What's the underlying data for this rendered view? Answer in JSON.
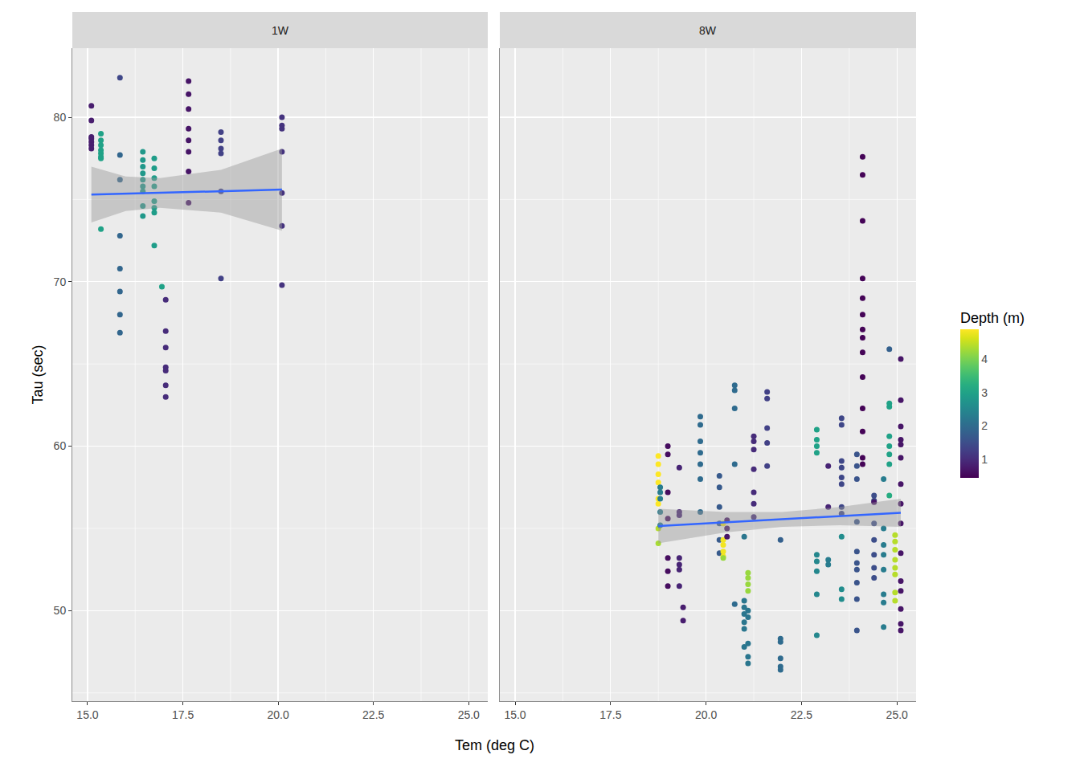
{
  "chart_data": {
    "type": "scatter",
    "x_label": "Tem (deg C)",
    "y_label": "Tau (sec)",
    "xlim": [
      14.6,
      25.5
    ],
    "xticks": [
      {
        "value": 15,
        "label": "15.0"
      },
      {
        "value": 17.5,
        "label": "17.5"
      },
      {
        "value": 20,
        "label": "20.0"
      },
      {
        "value": 22.5,
        "label": "22.5"
      },
      {
        "value": 25,
        "label": "25.0"
      }
    ],
    "ylim": [
      44.5,
      84.2
    ],
    "yticks": [
      50,
      60,
      70,
      80
    ],
    "grid": true,
    "colorbar": {
      "title": "Depth (m)",
      "range": [
        0.46,
        4.88
      ],
      "ticks": [
        1,
        2,
        3,
        4
      ]
    },
    "panels": [
      {
        "title": "1W",
        "x": [
          15.1,
          15.1,
          15.1,
          15.1,
          15.1,
          15.1,
          15.1,
          15.35,
          15.35,
          15.35,
          15.35,
          15.35,
          15.35,
          15.35,
          15.35,
          15.85,
          15.85,
          15.85,
          15.85,
          15.85,
          15.85,
          15.85,
          15.85,
          16.45,
          16.45,
          16.45,
          16.45,
          16.45,
          16.45,
          16.45,
          16.45,
          16.45,
          16.75,
          16.75,
          16.75,
          16.75,
          16.75,
          16.75,
          16.75,
          16.75,
          16.95,
          17.05,
          17.05,
          17.05,
          17.05,
          17.05,
          17.05,
          17.05,
          17.65,
          17.65,
          17.65,
          17.65,
          17.65,
          17.65,
          17.65,
          17.65,
          18.5,
          18.5,
          18.5,
          18.5,
          18.5,
          18.5,
          20.1,
          20.1,
          20.1,
          20.1,
          20.1,
          20.1,
          20.1
        ],
        "values": [
          80.7,
          79.8,
          78.8,
          78.7,
          78.5,
          78.3,
          78.1,
          79.0,
          78.6,
          78.3,
          78.0,
          77.8,
          77.6,
          77.5,
          73.2,
          82.4,
          77.7,
          76.2,
          72.8,
          70.8,
          69.4,
          68.0,
          66.9,
          77.9,
          77.4,
          77.0,
          76.6,
          76.2,
          75.8,
          75.5,
          74.6,
          74.0,
          77.5,
          76.9,
          76.3,
          75.8,
          74.9,
          74.5,
          74.2,
          72.2,
          69.7,
          68.9,
          67.0,
          66.0,
          64.8,
          64.6,
          63.7,
          63.0,
          82.2,
          81.4,
          80.5,
          79.3,
          78.6,
          77.9,
          76.7,
          74.8,
          79.1,
          78.6,
          78.1,
          77.8,
          75.5,
          70.2,
          80.0,
          79.5,
          79.3,
          77.9,
          75.4,
          73.4,
          69.8
        ],
        "depth": [
          0.8,
          0.8,
          0.8,
          0.8,
          0.8,
          0.8,
          0.8,
          3.0,
          3.0,
          3.0,
          3.0,
          3.0,
          3.0,
          3.0,
          3.0,
          1.4,
          1.9,
          1.9,
          1.9,
          1.9,
          1.9,
          1.9,
          1.9,
          2.8,
          2.8,
          2.8,
          2.8,
          2.8,
          2.8,
          2.8,
          2.8,
          2.8,
          2.9,
          2.9,
          2.9,
          2.9,
          2.9,
          2.9,
          2.9,
          2.9,
          3.0,
          1.0,
          1.0,
          1.0,
          1.0,
          1.0,
          1.0,
          1.0,
          0.7,
          0.7,
          0.7,
          0.7,
          0.7,
          0.7,
          0.7,
          0.7,
          1.3,
          1.3,
          1.3,
          1.3,
          1.3,
          1.3,
          1.1,
          1.1,
          1.1,
          1.1,
          1.1,
          1.1,
          1.1
        ],
        "fit": {
          "x": [
            15.1,
            16.0,
            16.9,
            18.5,
            20.1
          ],
          "values": [
            75.3,
            75.35,
            75.4,
            75.5,
            75.6
          ],
          "lower": [
            73.6,
            74.3,
            74.5,
            74.2,
            73.1
          ],
          "upper": [
            77.0,
            76.4,
            76.3,
            76.8,
            78.1
          ]
        }
      },
      {
        "title": "8W",
        "x": [
          18.75,
          18.75,
          18.75,
          18.75,
          18.75,
          18.75,
          18.75,
          18.75,
          18.8,
          18.8,
          18.8,
          18.8,
          18.8,
          19.0,
          19.0,
          19.0,
          19.0,
          19.0,
          19.0,
          19.0,
          19.3,
          19.3,
          19.3,
          19.3,
          19.3,
          19.3,
          19.3,
          19.4,
          19.4,
          19.85,
          19.85,
          19.85,
          19.85,
          19.85,
          19.85,
          19.85,
          20.35,
          20.35,
          20.35,
          20.35,
          20.35,
          20.35,
          20.45,
          20.45,
          20.45,
          20.45,
          20.45,
          20.45,
          20.55,
          20.55,
          20.55,
          20.75,
          20.75,
          20.75,
          20.75,
          20.75,
          21.0,
          21.0,
          21.0,
          21.0,
          21.0,
          21.0,
          21.0,
          21.1,
          21.1,
          21.1,
          21.1,
          21.1,
          21.1,
          21.1,
          21.1,
          21.1,
          21.25,
          21.25,
          21.25,
          21.25,
          21.25,
          21.25,
          21.25,
          21.6,
          21.6,
          21.6,
          21.6,
          21.6,
          21.95,
          21.95,
          21.95,
          21.95,
          21.95,
          21.95,
          22.9,
          22.9,
          22.9,
          22.9,
          22.9,
          22.9,
          22.9,
          22.9,
          22.9,
          23.2,
          23.2,
          23.2,
          23.2,
          23.55,
          23.55,
          23.55,
          23.55,
          23.55,
          23.55,
          23.55,
          23.55,
          23.55,
          23.55,
          23.55,
          23.95,
          23.95,
          23.95,
          23.95,
          23.95,
          23.95,
          23.95,
          23.95,
          23.95,
          23.95,
          24.1,
          24.1,
          24.1,
          24.1,
          24.1,
          24.1,
          24.1,
          24.1,
          24.1,
          24.1,
          24.1,
          24.1,
          24.1,
          24.1,
          24.4,
          24.4,
          24.4,
          24.4,
          24.4,
          24.4,
          24.4,
          24.4,
          24.65,
          24.65,
          24.65,
          24.65,
          24.65,
          24.65,
          24.65,
          24.65,
          24.8,
          24.8,
          24.8,
          24.8,
          24.8,
          24.8,
          24.8,
          24.8,
          24.95,
          24.95,
          24.95,
          24.95,
          24.95,
          24.95,
          24.95,
          24.95,
          25.1,
          25.1,
          25.1,
          25.1,
          25.1,
          25.1,
          25.1,
          25.1,
          25.1,
          25.1,
          25.1,
          25.1,
          25.1,
          25.1,
          25.1
        ],
        "values": [
          59.4,
          58.9,
          58.3,
          57.8,
          56.8,
          56.5,
          55.0,
          54.1,
          57.5,
          57.2,
          56.8,
          56.0,
          55.2,
          60.0,
          59.5,
          57.2,
          55.6,
          53.2,
          52.4,
          51.5,
          58.7,
          56.0,
          55.8,
          53.2,
          52.8,
          52.5,
          51.5,
          50.2,
          49.4,
          61.8,
          61.3,
          60.3,
          59.6,
          58.9,
          58.0,
          56.0,
          58.2,
          57.5,
          56.3,
          55.3,
          54.3,
          53.5,
          55.3,
          54.3,
          54.0,
          53.6,
          53.3,
          53.2,
          55.5,
          55.0,
          54.5,
          63.7,
          63.4,
          62.3,
          58.9,
          50.4,
          54.5,
          50.6,
          50.2,
          49.8,
          49.3,
          48.9,
          47.8,
          52.3,
          52.0,
          51.6,
          51.2,
          50.0,
          49.6,
          48.0,
          47.2,
          46.8,
          60.6,
          60.3,
          59.8,
          58.6,
          57.2,
          56.5,
          55.7,
          63.3,
          62.9,
          61.1,
          60.2,
          58.8,
          54.3,
          48.3,
          48.1,
          47.1,
          46.6,
          46.4,
          61.0,
          60.4,
          60.0,
          59.6,
          53.4,
          53.0,
          52.4,
          51.0,
          48.5,
          58.8,
          56.3,
          53.1,
          52.8,
          61.7,
          61.3,
          59.1,
          58.7,
          58.1,
          57.7,
          56.3,
          55.9,
          54.5,
          51.3,
          50.7,
          59.5,
          58.8,
          58.0,
          55.4,
          53.6,
          52.9,
          52.5,
          51.7,
          50.7,
          48.8,
          77.6,
          76.5,
          73.7,
          70.2,
          69.0,
          68.0,
          67.1,
          66.6,
          65.7,
          64.2,
          62.3,
          60.9,
          59.3,
          58.9,
          57.0,
          56.7,
          55.3,
          54.3,
          53.4,
          52.6,
          52.0,
          56.6,
          58.0,
          55.0,
          54.0,
          53.4,
          52.5,
          51.0,
          50.5,
          49.0,
          65.9,
          62.6,
          62.4,
          60.6,
          60.0,
          59.5,
          58.9,
          57.0,
          54.6,
          54.2,
          53.7,
          53.1,
          52.6,
          52.2,
          51.1,
          50.6,
          65.3,
          62.8,
          61.2,
          60.4,
          60.1,
          59.3,
          57.7,
          56.5,
          55.3,
          53.5,
          51.8,
          51.2,
          50.1,
          49.2,
          48.8
        ],
        "depth": [
          4.9,
          4.9,
          4.9,
          4.9,
          4.9,
          4.9,
          4.4,
          4.3,
          2.3,
          2.3,
          2.3,
          2.3,
          2.3,
          0.6,
          0.6,
          0.6,
          0.6,
          0.6,
          0.6,
          0.6,
          0.9,
          0.9,
          0.9,
          0.9,
          0.9,
          0.9,
          0.9,
          0.8,
          0.8,
          2.0,
          2.0,
          2.0,
          2.0,
          2.0,
          2.0,
          2.0,
          1.7,
          1.7,
          1.7,
          1.7,
          1.7,
          1.7,
          4.8,
          4.8,
          4.8,
          4.8,
          4.8,
          4.2,
          0.7,
          0.7,
          0.7,
          2.0,
          2.0,
          2.0,
          2.0,
          2.0,
          2.2,
          2.2,
          2.2,
          2.2,
          2.2,
          2.2,
          2.2,
          4.2,
          4.2,
          4.2,
          4.2,
          2.2,
          2.2,
          2.2,
          2.2,
          2.2,
          1.0,
          1.0,
          1.0,
          1.0,
          1.0,
          1.0,
          1.0,
          1.3,
          1.3,
          1.3,
          1.3,
          1.3,
          1.8,
          2.0,
          2.0,
          2.0,
          2.0,
          2.0,
          3.0,
          3.0,
          3.0,
          3.0,
          2.5,
          2.5,
          2.5,
          2.5,
          2.5,
          0.9,
          0.9,
          2.3,
          2.3,
          1.4,
          1.4,
          1.4,
          1.4,
          1.4,
          1.4,
          1.4,
          1.4,
          2.6,
          2.6,
          2.6,
          1.6,
          1.6,
          1.6,
          1.6,
          1.6,
          1.6,
          1.6,
          1.6,
          1.6,
          1.6,
          0.5,
          0.5,
          0.5,
          0.5,
          0.5,
          0.5,
          0.5,
          0.5,
          0.5,
          0.5,
          0.5,
          0.5,
          0.5,
          0.5,
          1.5,
          1.5,
          1.5,
          1.5,
          1.5,
          1.5,
          1.5,
          0.7,
          2.3,
          2.3,
          2.3,
          2.3,
          2.3,
          2.3,
          2.3,
          2.3,
          1.8,
          3.0,
          3.0,
          3.0,
          3.0,
          3.0,
          3.0,
          3.2,
          4.4,
          4.4,
          4.4,
          4.4,
          4.4,
          4.4,
          4.4,
          4.4,
          0.7,
          0.7,
          0.7,
          0.7,
          0.7,
          0.7,
          0.7,
          0.7,
          0.7,
          0.7,
          0.7,
          0.7,
          0.7,
          0.7,
          0.7
        ],
        "fit": {
          "x": [
            18.75,
            20.5,
            22.0,
            23.5,
            25.1
          ],
          "values": [
            55.15,
            55.37,
            55.56,
            55.75,
            55.95
          ],
          "lower": [
            54.1,
            54.75,
            55.1,
            55.2,
            55.1
          ],
          "upper": [
            56.2,
            56.0,
            56.0,
            56.3,
            56.8
          ]
        }
      }
    ]
  }
}
